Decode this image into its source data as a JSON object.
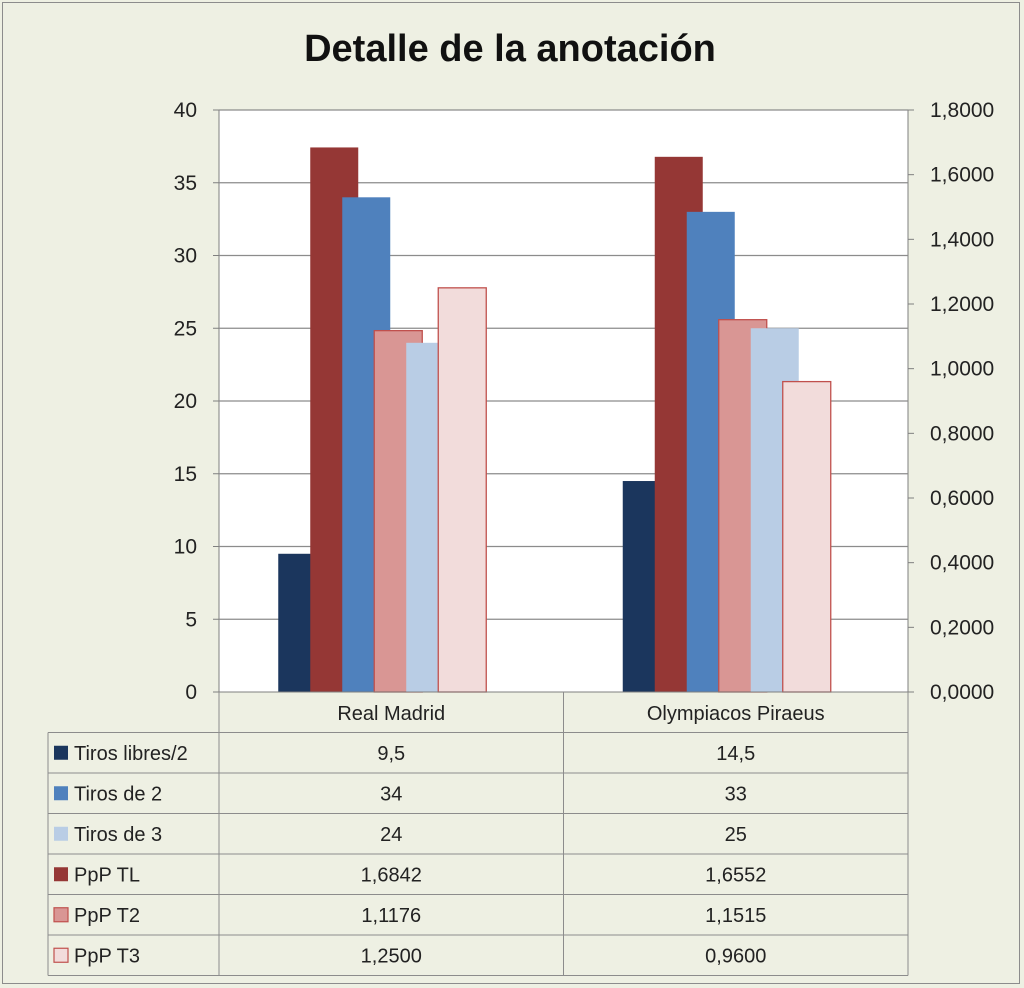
{
  "chart_data": {
    "type": "bar",
    "title": "Detalle de la anotación",
    "categories": [
      "Real Madrid",
      "Olympiacos Piraeus"
    ],
    "y_left": {
      "ylim": [
        0,
        40
      ],
      "ticks": [
        "0",
        "5",
        "10",
        "15",
        "20",
        "25",
        "30",
        "35",
        "40"
      ]
    },
    "y_right": {
      "ylim": [
        0,
        1.8
      ],
      "ticks": [
        "0,0000",
        "0,2000",
        "0,4000",
        "0,6000",
        "0,8000",
        "1,0000",
        "1,2000",
        "1,4000",
        "1,6000",
        "1,8000"
      ]
    },
    "grid": true,
    "legend": "data-table",
    "series": [
      {
        "name": "Tiros libres/2",
        "axis": "left",
        "color": "#1b365d",
        "values": [
          9.5,
          14.5
        ],
        "labels": [
          "9,5",
          "14,5"
        ]
      },
      {
        "name": "Tiros de 2",
        "axis": "left",
        "color": "#4f81bd",
        "values": [
          34,
          33
        ],
        "labels": [
          "34",
          "33"
        ]
      },
      {
        "name": "Tiros de 3",
        "axis": "left",
        "color": "#b9cde5",
        "values": [
          24,
          25
        ],
        "labels": [
          "24",
          "25"
        ]
      },
      {
        "name": "PpP TL",
        "axis": "right",
        "color": "#953735",
        "values": [
          1.6842,
          1.6552
        ],
        "labels": [
          "1,6842",
          "1,6552"
        ]
      },
      {
        "name": "PpP T2",
        "axis": "right",
        "color": "#d99694",
        "values": [
          1.1176,
          1.1515
        ],
        "labels": [
          "1,1176",
          "1,1515"
        ]
      },
      {
        "name": "PpP T3",
        "axis": "right",
        "color": "#f2dcdb",
        "values": [
          1.25,
          0.96
        ],
        "labels": [
          "1,2500",
          "0,9600"
        ]
      }
    ]
  }
}
